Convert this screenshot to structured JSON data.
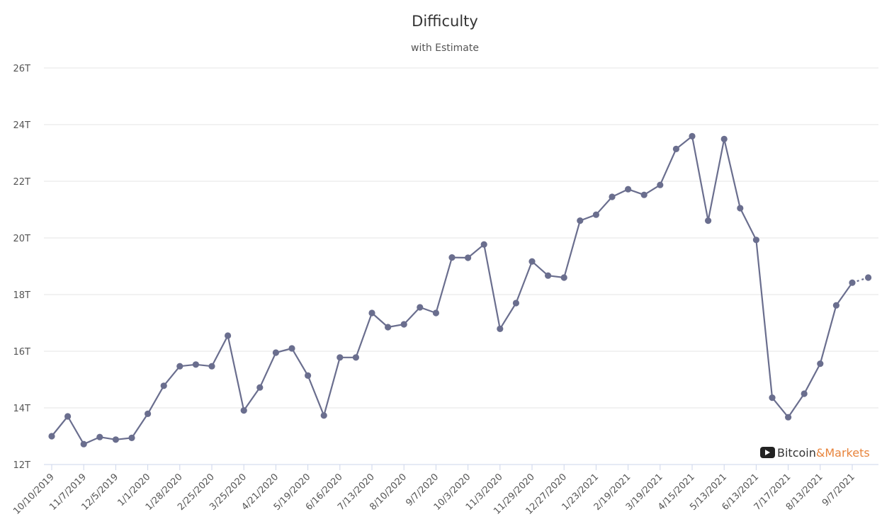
{
  "chart_data": {
    "type": "line",
    "title": "Difficulty",
    "subtitle": "with Estimate",
    "ylim": [
      12,
      26
    ],
    "yticks": [
      12,
      14,
      16,
      18,
      20,
      22,
      24,
      26
    ],
    "ytick_labels": [
      "12T",
      "14T",
      "16T",
      "18T",
      "20T",
      "22T",
      "24T",
      "26T"
    ],
    "xtick_labels": [
      "10/10/2019",
      "11/7/2019",
      "12/5/2019",
      "1/1/2020",
      "1/28/2020",
      "2/25/2020",
      "3/25/2020",
      "4/21/2020",
      "5/19/2020",
      "6/16/2020",
      "7/13/2020",
      "8/10/2020",
      "9/7/2020",
      "10/3/2020",
      "11/3/2020",
      "11/29/2020",
      "12/27/2020",
      "1/23/2021",
      "2/19/2021",
      "3/19/2021",
      "4/15/2021",
      "5/13/2021",
      "6/13/2021",
      "7/17/2021",
      "8/13/2021",
      "9/7/2021"
    ],
    "grid": true,
    "line_color": "#6a6e8e",
    "series": [
      {
        "values": [
          13.0,
          13.7,
          12.72,
          12.97,
          12.88,
          12.94,
          13.79,
          14.78,
          15.47,
          15.53,
          15.47,
          16.55,
          13.91,
          14.72,
          15.95,
          16.1,
          15.14,
          13.73,
          15.78,
          15.78,
          17.35,
          16.85,
          16.95,
          17.55,
          17.35,
          19.31,
          19.3,
          19.77,
          16.79,
          17.7,
          19.17,
          18.67,
          18.6,
          20.61,
          20.82,
          21.45,
          21.72,
          21.52,
          21.87,
          23.14,
          23.59,
          20.61,
          23.49,
          21.05,
          19.93,
          14.36,
          13.67,
          14.5,
          15.56,
          17.62,
          18.42
        ],
        "estimate": 18.6
      }
    ]
  },
  "brand": {
    "word1": "Bitcoin",
    "word2": "&Markets",
    "icon": "play-icon",
    "color1": "#333333",
    "color2": "#e8843c"
  }
}
